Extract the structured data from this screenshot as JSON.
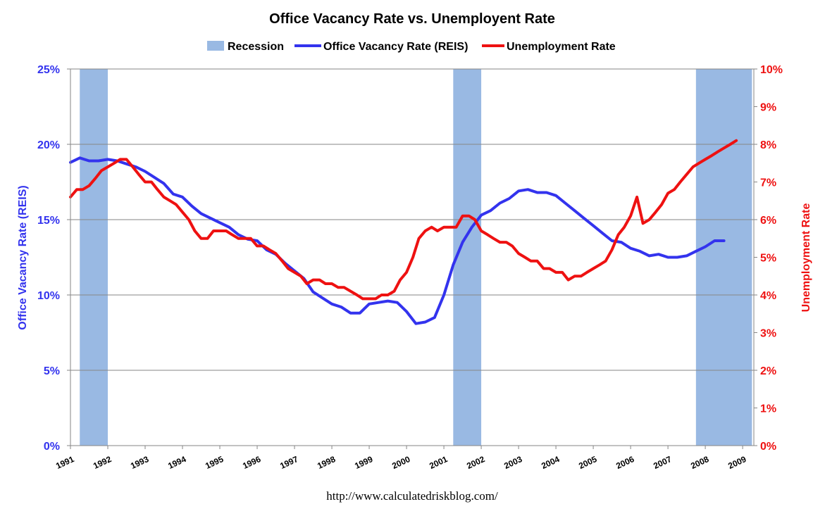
{
  "chart_data": {
    "type": "line",
    "title": "Office Vacancy Rate vs. Unemployent Rate",
    "source": "http://www.calculatedriskblog.com/",
    "legend_position": "top",
    "left_axis": {
      "label": "Office Vacancy Rate (REIS)",
      "range": [
        0,
        25
      ],
      "ticks": [
        0,
        5,
        10,
        15,
        20,
        25
      ],
      "tick_labels": [
        "0%",
        "5%",
        "10%",
        "15%",
        "20%",
        "25%"
      ]
    },
    "right_axis": {
      "label": "Unemployment Rate",
      "range": [
        0,
        10
      ],
      "ticks": [
        0,
        1,
        2,
        3,
        4,
        5,
        6,
        7,
        8,
        9,
        10
      ],
      "tick_labels": [
        "0%",
        "1%",
        "2%",
        "3%",
        "4%",
        "5%",
        "6%",
        "7%",
        "8%",
        "9%",
        "10%"
      ]
    },
    "x_axis": {
      "range": [
        1991,
        2009.3
      ],
      "ticks": [
        1991,
        1992,
        1993,
        1994,
        1995,
        1996,
        1997,
        1998,
        1999,
        2000,
        2001,
        2002,
        2003,
        2004,
        2005,
        2006,
        2007,
        2008,
        2009
      ],
      "tick_labels": [
        "1991",
        "1992",
        "1993",
        "1994",
        "1995",
        "1996",
        "1997",
        "1998",
        "1999",
        "2000",
        "2001",
        "2002",
        "2003",
        "2004",
        "2005",
        "2006",
        "2007",
        "2008",
        "2009"
      ]
    },
    "recessions": [
      {
        "start": 1991.25,
        "end": 1992.0
      },
      {
        "start": 2001.25,
        "end": 2002.0
      },
      {
        "start": 2007.75,
        "end": 2009.25
      }
    ],
    "series": [
      {
        "name": "Recession",
        "kind": "band",
        "color": "#99b9e3"
      },
      {
        "name": "Office Vacancy Rate (REIS)",
        "axis": "left",
        "color": "#3333ee",
        "x": [
          1991.0,
          1991.25,
          1991.5,
          1991.75,
          1992.0,
          1992.25,
          1992.5,
          1992.75,
          1993.0,
          1993.25,
          1993.5,
          1993.75,
          1994.0,
          1994.25,
          1994.5,
          1994.75,
          1995.0,
          1995.25,
          1995.5,
          1995.75,
          1996.0,
          1996.25,
          1996.5,
          1996.75,
          1997.0,
          1997.25,
          1997.5,
          1997.75,
          1998.0,
          1998.25,
          1998.5,
          1998.75,
          1999.0,
          1999.25,
          1999.5,
          1999.75,
          2000.0,
          2000.25,
          2000.5,
          2000.75,
          2001.0,
          2001.25,
          2001.5,
          2001.75,
          2002.0,
          2002.25,
          2002.5,
          2002.75,
          2003.0,
          2003.25,
          2003.5,
          2003.75,
          2004.0,
          2004.25,
          2004.5,
          2004.75,
          2005.0,
          2005.25,
          2005.5,
          2005.75,
          2006.0,
          2006.25,
          2006.5,
          2006.75,
          2007.0,
          2007.25,
          2007.5,
          2007.75,
          2008.0,
          2008.25,
          2008.5
        ],
        "values": [
          18.8,
          19.1,
          18.9,
          18.9,
          19.0,
          18.9,
          18.7,
          18.5,
          18.2,
          17.8,
          17.4,
          16.7,
          16.5,
          15.9,
          15.4,
          15.1,
          14.8,
          14.5,
          14.0,
          13.7,
          13.6,
          13.0,
          12.7,
          12.1,
          11.6,
          11.1,
          10.2,
          9.8,
          9.4,
          9.2,
          8.8,
          8.8,
          9.4,
          9.5,
          9.6,
          9.5,
          8.9,
          8.1,
          8.2,
          8.5,
          10.0,
          12.0,
          13.5,
          14.5,
          15.3,
          15.6,
          16.1,
          16.4,
          16.9,
          17.0,
          16.8,
          16.8,
          16.6,
          16.1,
          15.6,
          15.1,
          14.6,
          14.1,
          13.6,
          13.5,
          13.1,
          12.9,
          12.6,
          12.7,
          12.5,
          12.5,
          12.6,
          12.9,
          13.2,
          13.6,
          13.6
        ]
      },
      {
        "name": "Unemployment Rate",
        "axis": "right",
        "color": "#ee1111",
        "x": [
          1991.0,
          1991.17,
          1991.33,
          1991.5,
          1991.67,
          1991.83,
          1992.0,
          1992.17,
          1992.33,
          1992.5,
          1992.67,
          1992.83,
          1993.0,
          1993.17,
          1993.33,
          1993.5,
          1993.67,
          1993.83,
          1994.0,
          1994.17,
          1994.33,
          1994.5,
          1994.67,
          1994.83,
          1995.0,
          1995.17,
          1995.33,
          1995.5,
          1995.67,
          1995.83,
          1996.0,
          1996.17,
          1996.33,
          1996.5,
          1996.67,
          1996.83,
          1997.0,
          1997.17,
          1997.33,
          1997.5,
          1997.67,
          1997.83,
          1998.0,
          1998.17,
          1998.33,
          1998.5,
          1998.67,
          1998.83,
          1999.0,
          1999.17,
          1999.33,
          1999.5,
          1999.67,
          1999.83,
          2000.0,
          2000.17,
          2000.33,
          2000.5,
          2000.67,
          2000.83,
          2001.0,
          2001.17,
          2001.33,
          2001.5,
          2001.67,
          2001.83,
          2002.0,
          2002.17,
          2002.33,
          2002.5,
          2002.67,
          2002.83,
          2003.0,
          2003.17,
          2003.33,
          2003.5,
          2003.67,
          2003.83,
          2004.0,
          2004.17,
          2004.33,
          2004.5,
          2004.67,
          2004.83,
          2005.0,
          2005.17,
          2005.33,
          2005.5,
          2005.67,
          2005.83,
          2006.0,
          2006.17,
          2006.33,
          2006.5,
          2006.67,
          2006.83,
          2007.0,
          2007.17,
          2007.33,
          2007.5,
          2007.67,
          2007.83,
          2008.0,
          2008.17,
          2008.33,
          2008.5,
          2008.67,
          2008.83
        ],
        "values": [
          6.6,
          6.8,
          6.8,
          6.9,
          7.1,
          7.3,
          7.4,
          7.5,
          7.6,
          7.6,
          7.4,
          7.2,
          7.0,
          7.0,
          6.8,
          6.6,
          6.5,
          6.4,
          6.2,
          6.0,
          5.7,
          5.5,
          5.5,
          5.7,
          5.7,
          5.7,
          5.6,
          5.5,
          5.5,
          5.5,
          5.3,
          5.3,
          5.2,
          5.1,
          4.9,
          4.7,
          4.6,
          4.5,
          4.3,
          4.4,
          4.4,
          4.3,
          4.3,
          4.2,
          4.2,
          4.1,
          4.0,
          3.9,
          3.9,
          3.9,
          4.0,
          4.0,
          4.1,
          4.4,
          4.6,
          5.0,
          5.5,
          5.7,
          5.8,
          5.7,
          5.8,
          5.8,
          5.8,
          6.1,
          6.1,
          6.0,
          5.7,
          5.6,
          5.5,
          5.4,
          5.4,
          5.3,
          5.1,
          5.0,
          4.9,
          4.9,
          4.7,
          4.7,
          4.6,
          4.6,
          4.4,
          4.5,
          4.5,
          4.6,
          4.7,
          4.8,
          4.9,
          5.2,
          5.6,
          5.8,
          6.1,
          6.6,
          5.9,
          6.0,
          6.2,
          6.4,
          6.7,
          6.8,
          7.0,
          7.2,
          7.4,
          7.5,
          7.6,
          7.7,
          7.8,
          7.9,
          8.0,
          8.1
        ]
      }
    ]
  }
}
